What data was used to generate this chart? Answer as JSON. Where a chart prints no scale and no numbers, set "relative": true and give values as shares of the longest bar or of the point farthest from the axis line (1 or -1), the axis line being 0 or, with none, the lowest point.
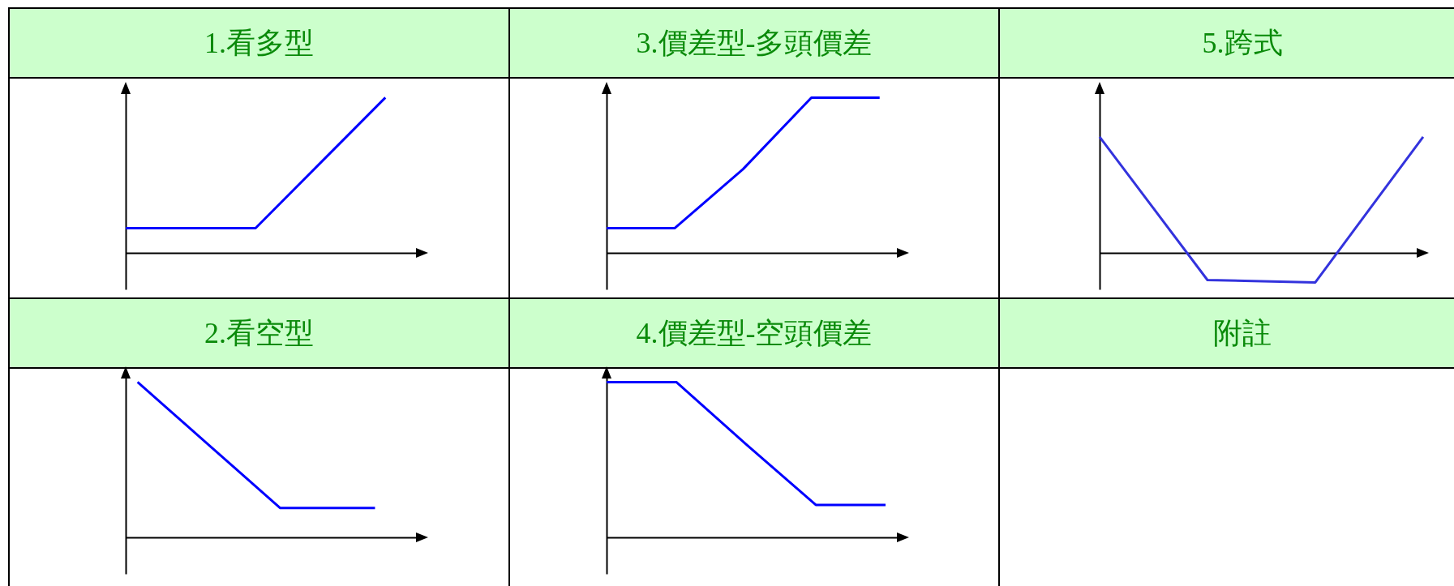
{
  "chart_data": [
    {
      "type": "line",
      "title": "1.看多型",
      "relative": true,
      "categories": [
        null,
        null,
        null
      ],
      "series": [
        {
          "color": "#0000ff",
          "values": [
            0.16,
            0.16,
            1
          ]
        }
      ]
    },
    {
      "type": "line",
      "title": "3.價差型-多頭價差",
      "relative": true,
      "categories": [
        null,
        null,
        null,
        null,
        null
      ],
      "series": [
        {
          "color": "#0000ff",
          "values": [
            0.16,
            0.16,
            0.54,
            1,
            1
          ]
        }
      ]
    },
    {
      "type": "line",
      "title": "5.跨式",
      "relative": true,
      "categories": [
        null,
        null,
        null,
        null
      ],
      "series": [
        {
          "color": "#3333dd",
          "values": [
            1,
            -0.23,
            -0.25,
            1
          ]
        }
      ]
    },
    {
      "type": "line",
      "title": "2.看空型",
      "relative": true,
      "categories": [
        null,
        null,
        null,
        null,
        null,
        null
      ],
      "series": [
        {
          "color": "#0000ff",
          "values": [
            1,
            0.73,
            0.46,
            0.19,
            0.19,
            0.19
          ]
        }
      ]
    },
    {
      "type": "line",
      "title": "4.價差型-空頭價差",
      "relative": true,
      "categories": [
        null,
        null,
        null,
        null,
        null
      ],
      "series": [
        {
          "color": "#0000ff",
          "values": [
            1,
            1,
            0.6,
            0.21,
            0.21
          ]
        }
      ]
    },
    {
      "type": "other",
      "title": "附註"
    }
  ]
}
